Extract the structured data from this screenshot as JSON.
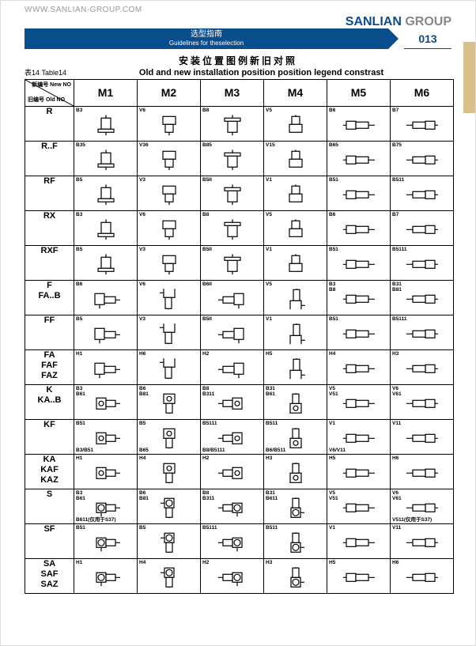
{
  "url": "WWW.SANLIAN-GROUP.COM",
  "brand1": "SANLIAN",
  "brand2": " GROUP",
  "band_cn": "选型指南",
  "band_en": "Guidelines for theselection",
  "page_num": "013",
  "title_cn": "安装位置图例新旧对照",
  "table_label": "表14 Table14",
  "title_en": "Old and new installation position position legend constrast",
  "corner_new": "新编号\nNew NO",
  "corner_old": "旧编号\nOld NO",
  "columns": [
    "M1",
    "M2",
    "M3",
    "M4",
    "M5",
    "M6"
  ],
  "colors": {
    "brand_blue": "#0a4d8c",
    "brand_gray": "#888888",
    "tab": "#d7c089",
    "line": "#000000"
  },
  "rows": [
    {
      "head": "R",
      "cells": [
        {
          "t": "B3",
          "shape": "r-vert"
        },
        {
          "t": "V6",
          "shape": "r-down"
        },
        {
          "t": "B8",
          "shape": "r-vert-flip"
        },
        {
          "t": "V5",
          "shape": "r-up"
        },
        {
          "t": "B6",
          "shape": "inline-l"
        },
        {
          "t": "B7",
          "shape": "inline-r"
        }
      ]
    },
    {
      "head": "R..F",
      "cells": [
        {
          "t": "B35",
          "shape": "r-vert"
        },
        {
          "t": "V36",
          "shape": "r-down"
        },
        {
          "t": "B85",
          "shape": "r-vert-flip"
        },
        {
          "t": "V15",
          "shape": "r-up"
        },
        {
          "t": "B65",
          "shape": "inline-l"
        },
        {
          "t": "B75",
          "shape": "inline-r"
        }
      ]
    },
    {
      "head": "RF",
      "cells": [
        {
          "t": "B5",
          "shape": "r-vert"
        },
        {
          "t": "V3",
          "shape": "r-down"
        },
        {
          "t": "B5II",
          "shape": "r-vert-flip"
        },
        {
          "t": "V1",
          "shape": "r-up"
        },
        {
          "t": "B51",
          "shape": "inline-l"
        },
        {
          "t": "B511",
          "shape": "inline-r"
        }
      ]
    },
    {
      "head": "RX",
      "cells": [
        {
          "t": "B3",
          "shape": "r-vert"
        },
        {
          "t": "V6",
          "shape": "r-down"
        },
        {
          "t": "B8",
          "shape": "r-vert-flip"
        },
        {
          "t": "V5",
          "shape": "r-up"
        },
        {
          "t": "B6",
          "shape": "inline-l"
        },
        {
          "t": "B7",
          "shape": "inline-r"
        }
      ]
    },
    {
      "head": "RXF",
      "cells": [
        {
          "t": "B5",
          "shape": "r-vert"
        },
        {
          "t": "V3",
          "shape": "r-down"
        },
        {
          "t": "B5II",
          "shape": "r-vert-flip"
        },
        {
          "t": "V1",
          "shape": "r-up"
        },
        {
          "t": "B51",
          "shape": "inline-l"
        },
        {
          "t": "B5111",
          "shape": "inline-r"
        }
      ]
    },
    {
      "head": "F\nFA..B",
      "cells": [
        {
          "t": "B6",
          "shape": "angle-l"
        },
        {
          "t": "V6",
          "shape": "angle-d"
        },
        {
          "t": "B6II",
          "shape": "angle-r"
        },
        {
          "t": "V5",
          "shape": "angle-u"
        },
        {
          "t": "B3\nB8",
          "shape": "inline-l"
        },
        {
          "t": "B31\nB81",
          "shape": "inline-r"
        }
      ]
    },
    {
      "head": "FF",
      "cells": [
        {
          "t": "B5",
          "shape": "angle-l"
        },
        {
          "t": "V3",
          "shape": "angle-d"
        },
        {
          "t": "B5II",
          "shape": "angle-r"
        },
        {
          "t": "V1",
          "shape": "angle-u"
        },
        {
          "t": "B51",
          "shape": "inline-l"
        },
        {
          "t": "B5111",
          "shape": "inline-r"
        }
      ]
    },
    {
      "head": "FA\nFAF\nFAZ",
      "cells": [
        {
          "t": "H1",
          "shape": "angle-l"
        },
        {
          "t": "H6",
          "shape": "angle-d"
        },
        {
          "t": "H2",
          "shape": "angle-r"
        },
        {
          "t": "H5",
          "shape": "angle-u"
        },
        {
          "t": "H4",
          "shape": "inline-l"
        },
        {
          "t": "H3",
          "shape": "inline-r"
        }
      ]
    },
    {
      "head": "K\nKA..B",
      "cells": [
        {
          "t": "B3\nB61",
          "shape": "bevel-l"
        },
        {
          "t": "B6\nB81",
          "shape": "bevel-d"
        },
        {
          "t": "B8\nB311",
          "shape": "bevel-r"
        },
        {
          "t": "B31\nB61",
          "shape": "bevel-u"
        },
        {
          "t": "V5\nV51",
          "shape": "inline-l"
        },
        {
          "t": "V6\nV61",
          "shape": "inline-r"
        }
      ]
    },
    {
      "head": "KF",
      "cells": [
        {
          "t": "B51",
          "b": "B3/B51",
          "shape": "bevel-l"
        },
        {
          "t": "B5",
          "b": "B65",
          "shape": "bevel-d"
        },
        {
          "t": "B5111",
          "b": "B8/B5111",
          "shape": "bevel-r"
        },
        {
          "t": "B511",
          "b": "B6/B511",
          "shape": "bevel-u"
        },
        {
          "t": "V1",
          "b": "V6/V11",
          "shape": "inline-l"
        },
        {
          "t": "V11",
          "shape": "inline-r"
        }
      ]
    },
    {
      "head": "KA\nKAF\nKAZ",
      "cells": [
        {
          "t": "H1",
          "shape": "bevel-l"
        },
        {
          "t": "H4",
          "shape": "bevel-d"
        },
        {
          "t": "H2",
          "shape": "bevel-r"
        },
        {
          "t": "H3",
          "shape": "bevel-u"
        },
        {
          "t": "H5",
          "shape": "inline-l"
        },
        {
          "t": "H6",
          "shape": "inline-r"
        }
      ]
    },
    {
      "head": "S",
      "cells": [
        {
          "t": "B3\nB61",
          "b": "B611(仅用于S37)",
          "shape": "worm-l"
        },
        {
          "t": "B6\nB81",
          "shape": "worm-d"
        },
        {
          "t": "B8\nB311",
          "shape": "worm-r"
        },
        {
          "t": "B31\nB611",
          "shape": "worm-u"
        },
        {
          "t": "V5\nV51",
          "shape": "inline-l"
        },
        {
          "t": "V6\nV61",
          "b": "V511(仅用于S37)",
          "shape": "inline-r"
        }
      ]
    },
    {
      "head": "SF",
      "cells": [
        {
          "t": "B51",
          "shape": "worm-l"
        },
        {
          "t": "B5",
          "shape": "worm-d"
        },
        {
          "t": "B5111",
          "shape": "worm-r"
        },
        {
          "t": "B511",
          "shape": "worm-u"
        },
        {
          "t": "V1",
          "shape": "inline-l"
        },
        {
          "t": "V11",
          "shape": "inline-r"
        }
      ]
    },
    {
      "head": "SA\nSAF\nSAZ",
      "cells": [
        {
          "t": "H1",
          "shape": "worm-l"
        },
        {
          "t": "H4",
          "shape": "worm-d"
        },
        {
          "t": "H2",
          "shape": "worm-r"
        },
        {
          "t": "H3",
          "shape": "worm-u"
        },
        {
          "t": "H5",
          "shape": "inline-l"
        },
        {
          "t": "H6",
          "shape": "inline-r"
        }
      ]
    }
  ]
}
